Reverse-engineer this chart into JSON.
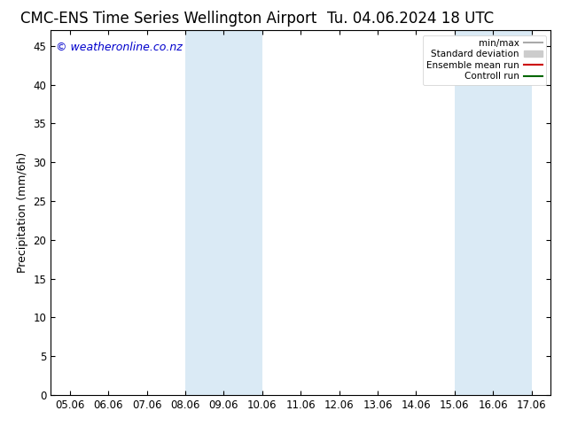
{
  "title_left": "CMC-ENS Time Series Wellington Airport",
  "title_right": "Tu. 04.06.2024 18 UTC",
  "ylabel": "Precipitation (mm/6h)",
  "ylim": [
    0,
    47
  ],
  "yticks": [
    0,
    5,
    10,
    15,
    20,
    25,
    30,
    35,
    40,
    45
  ],
  "xtick_labels": [
    "05.06",
    "06.06",
    "07.06",
    "08.06",
    "09.06",
    "10.06",
    "11.06",
    "12.06",
    "13.06",
    "14.06",
    "15.06",
    "16.06",
    "17.06"
  ],
  "xtick_positions": [
    0,
    1,
    2,
    3,
    4,
    5,
    6,
    7,
    8,
    9,
    10,
    11,
    12
  ],
  "xlim": [
    -0.5,
    12.5
  ],
  "shaded_regions": [
    {
      "xstart": 3,
      "xend": 5,
      "color": "#daeaf5"
    },
    {
      "xstart": 10,
      "xend": 12,
      "color": "#daeaf5"
    }
  ],
  "watermark": "© weatheronline.co.nz",
  "legend_items": [
    {
      "label": "min/max",
      "color": "#aaaaaa",
      "lw": 1.5,
      "style": "solid",
      "type": "line"
    },
    {
      "label": "Standard deviation",
      "color": "#cccccc",
      "lw": 8,
      "style": "solid",
      "type": "patch"
    },
    {
      "label": "Ensemble mean run",
      "color": "#cc0000",
      "lw": 1.5,
      "style": "solid",
      "type": "line"
    },
    {
      "label": "Controll run",
      "color": "#006600",
      "lw": 1.5,
      "style": "solid",
      "type": "line"
    }
  ],
  "background_color": "#ffffff",
  "plot_bg_color": "#ffffff",
  "border_color": "#000000",
  "title_fontsize": 12,
  "tick_fontsize": 8.5,
  "ylabel_fontsize": 9,
  "watermark_fontsize": 9,
  "watermark_color": "#0000cc"
}
